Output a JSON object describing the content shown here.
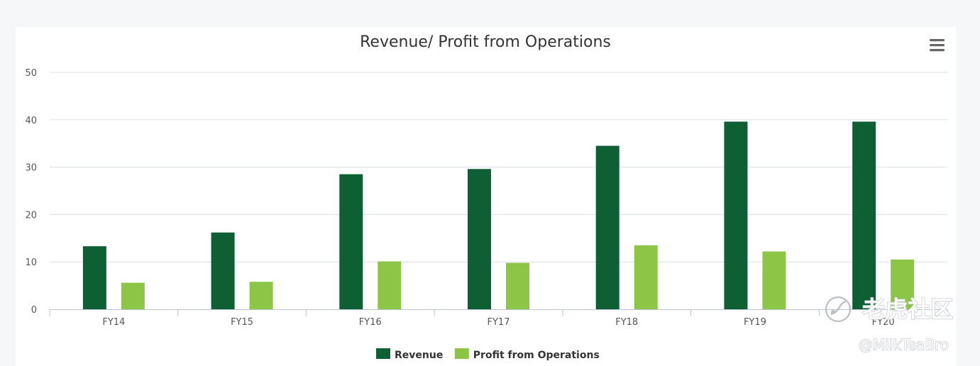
{
  "chart_data": {
    "type": "bar",
    "title": "Revenue/ Profit from Operations",
    "xlabel": "",
    "ylabel": "",
    "categories": [
      "FY14",
      "FY15",
      "FY16",
      "FY17",
      "FY18",
      "FY19",
      "FY20"
    ],
    "series": [
      {
        "name": "Revenue",
        "color": "#0f5f34",
        "values": [
          13.3,
          16.2,
          28.5,
          29.6,
          34.5,
          39.6,
          39.6
        ]
      },
      {
        "name": "Profit from Operations",
        "color": "#8dc647",
        "values": [
          5.6,
          5.8,
          10.1,
          9.8,
          13.5,
          12.2,
          10.5
        ]
      }
    ],
    "ylim": [
      0,
      50
    ],
    "yticks": [
      0,
      10,
      20,
      30,
      40,
      50
    ],
    "grid": true,
    "legend_position": "bottom-center"
  },
  "menu_icon": "hamburger-menu-icon",
  "watermark": {
    "brand": "老虎社区",
    "handle": "@MilkTeaBro"
  }
}
